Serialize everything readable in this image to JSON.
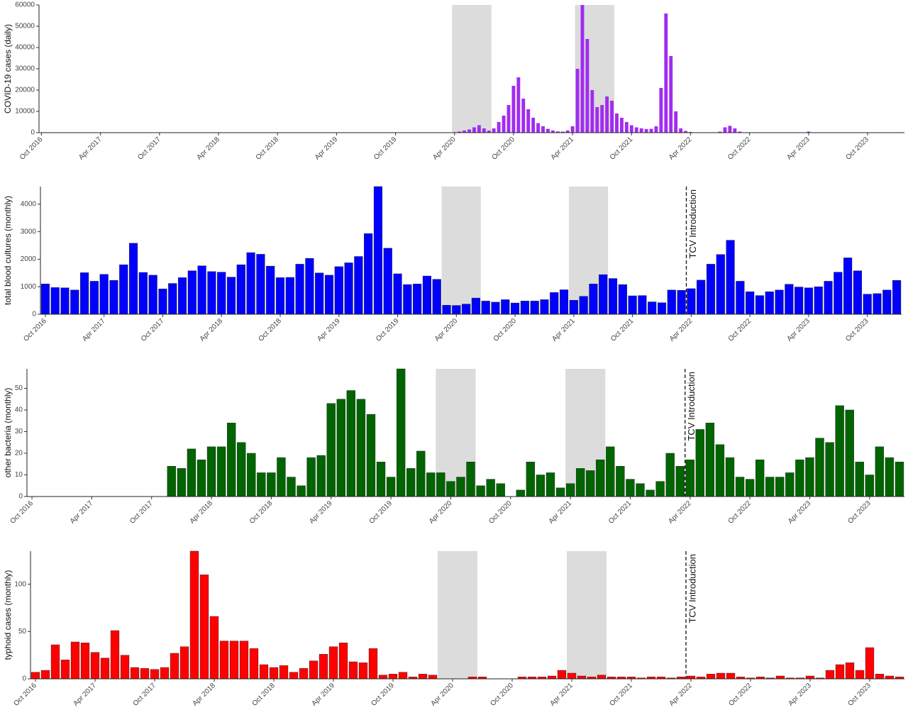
{
  "chart_data": [
    {
      "type": "bar",
      "y_label": "COVID-19 cases (daily)",
      "color": "#a12cf0",
      "categories": [
        "Oct 2016",
        null,
        null,
        null,
        null,
        null,
        null,
        null,
        null,
        null,
        null,
        null,
        "Apr 2017",
        null,
        null,
        null,
        null,
        null,
        null,
        null,
        null,
        null,
        null,
        null,
        "Oct 2017",
        null,
        null,
        null,
        null,
        null,
        null,
        null,
        null,
        null,
        null,
        null,
        "Apr 2018",
        null,
        null,
        null,
        null,
        null,
        null,
        null,
        null,
        null,
        null,
        null,
        "Oct 2018",
        null,
        null,
        null,
        null,
        null,
        null,
        null,
        null,
        null,
        null,
        null,
        "Apr 2019",
        null,
        null,
        null,
        null,
        null,
        null,
        null,
        null,
        null,
        null,
        null,
        "Oct 2019",
        null,
        null,
        null,
        null,
        null,
        null,
        null,
        null,
        null,
        null,
        null,
        "Apr 2020",
        null,
        null,
        null,
        null,
        null,
        null,
        null,
        null,
        null,
        null,
        null,
        "Oct 2020",
        null,
        null,
        null,
        null,
        null,
        null,
        null,
        null,
        null,
        null,
        null,
        "Apr 2021",
        null,
        null,
        null,
        null,
        null,
        null,
        null,
        null,
        null,
        null,
        null,
        "Oct 2021",
        null,
        null,
        null,
        null,
        null,
        null,
        null,
        null,
        null,
        null,
        null,
        "Apr 2022",
        null,
        null,
        null,
        null,
        null,
        null,
        null,
        null,
        null,
        null,
        null,
        "Oct 2022",
        null,
        null,
        null,
        null,
        null,
        null,
        null,
        null,
        null,
        null,
        null,
        "Apr 2023",
        null,
        null,
        null,
        null,
        null,
        null,
        null,
        null,
        null,
        null,
        null,
        "Oct 2023",
        null,
        null,
        null,
        null,
        null,
        null,
        null
      ],
      "values": [
        0,
        0,
        0,
        0,
        0,
        0,
        0,
        0,
        0,
        0,
        0,
        0,
        0,
        0,
        0,
        0,
        0,
        0,
        0,
        0,
        0,
        0,
        0,
        0,
        0,
        0,
        0,
        0,
        0,
        0,
        0,
        0,
        0,
        0,
        0,
        0,
        0,
        0,
        0,
        0,
        0,
        0,
        0,
        0,
        0,
        0,
        0,
        0,
        0,
        0,
        0,
        0,
        0,
        0,
        0,
        0,
        0,
        0,
        0,
        0,
        0,
        0,
        0,
        0,
        0,
        0,
        0,
        0,
        0,
        0,
        0,
        0,
        0,
        0,
        0,
        0,
        0,
        0,
        0,
        0,
        0,
        0,
        0,
        0,
        200,
        500,
        1000,
        1500,
        2500,
        3500,
        2000,
        1000,
        2000,
        5000,
        8000,
        13000,
        22000,
        26000,
        16000,
        11000,
        7000,
        4500,
        3000,
        1800,
        1000,
        600,
        500,
        1000,
        3000,
        30000,
        60000,
        44000,
        20000,
        12000,
        13000,
        17000,
        15000,
        9000,
        7000,
        5000,
        3500,
        2500,
        2000,
        1700,
        1800,
        3000,
        21000,
        56000,
        36000,
        10000,
        2000,
        800,
        300,
        100,
        0,
        0,
        0,
        0,
        500,
        2500,
        3200,
        2000,
        500,
        0,
        0,
        0,
        0,
        0,
        0,
        0,
        0,
        0,
        0,
        0,
        0,
        0,
        500,
        0,
        0,
        0,
        0,
        0,
        0,
        0,
        0,
        0,
        0,
        0,
        0,
        0,
        0,
        0,
        0,
        0,
        0,
        0
      ],
      "ylim": [
        0,
        60000
      ],
      "yticks": [
        0,
        10000,
        20000,
        30000,
        40000,
        50000,
        60000
      ],
      "shaded": [
        [
          84,
          91
        ],
        [
          109,
          116
        ]
      ]
    },
    {
      "type": "bar",
      "y_label": "total blood cultures (monthly)",
      "color": "#0000ff",
      "categories": [
        "Oct 2016",
        null,
        null,
        null,
        null,
        null,
        "Apr 2017",
        null,
        null,
        null,
        null,
        null,
        "Oct 2017",
        null,
        null,
        null,
        null,
        null,
        "Apr 2018",
        null,
        null,
        null,
        null,
        null,
        "Oct 2018",
        null,
        null,
        null,
        null,
        null,
        "Apr 2019",
        null,
        null,
        null,
        null,
        null,
        "Oct 2019",
        null,
        null,
        null,
        null,
        null,
        "Apr 2020",
        null,
        null,
        null,
        null,
        null,
        "Oct 2020",
        null,
        null,
        null,
        null,
        null,
        "Apr 2021",
        null,
        null,
        null,
        null,
        null,
        "Oct 2021",
        null,
        null,
        null,
        null,
        null,
        "Apr 2022",
        null,
        null,
        null,
        null,
        null,
        "Oct 2022",
        null,
        null,
        null,
        null,
        null,
        "Apr 2023",
        null,
        null,
        null,
        null,
        null,
        "Oct 2023",
        null,
        null,
        null
      ],
      "values": [
        1100,
        970,
        960,
        880,
        1510,
        1200,
        1450,
        1230,
        1800,
        2580,
        1520,
        1420,
        920,
        1120,
        1330,
        1580,
        1760,
        1550,
        1530,
        1350,
        1800,
        2240,
        2180,
        1750,
        1330,
        1340,
        1820,
        2030,
        1500,
        1420,
        1730,
        1870,
        2100,
        2930,
        4640,
        2400,
        1470,
        1080,
        1100,
        1390,
        1270,
        330,
        320,
        370,
        590,
        480,
        440,
        530,
        410,
        480,
        480,
        530,
        790,
        890,
        510,
        650,
        1100,
        1440,
        1300,
        1080,
        670,
        680,
        450,
        420,
        880,
        870,
        930,
        1240,
        1820,
        2170,
        2690,
        1200,
        820,
        680,
        820,
        880,
        1090,
        990,
        960,
        1000,
        1200,
        1530,
        2050,
        1580,
        730,
        750,
        880,
        1230
      ],
      "ylim": [
        0,
        4640
      ],
      "yticks": [
        0,
        1000,
        2000,
        3000,
        4000
      ],
      "shaded": [
        [
          41,
          44
        ],
        [
          54,
          57
        ]
      ],
      "annotation": {
        "text": "TCV Introduction",
        "at": "Apr 2022"
      }
    },
    {
      "type": "bar",
      "y_label": "other bacteria (monthly)",
      "color": "#006400",
      "categories": [
        "Oct 2016",
        null,
        null,
        null,
        null,
        null,
        "Apr 2017",
        null,
        null,
        null,
        null,
        null,
        "Oct 2017",
        null,
        null,
        null,
        null,
        null,
        "Apr 2018",
        null,
        null,
        null,
        null,
        null,
        "Oct 2018",
        null,
        null,
        null,
        null,
        null,
        "Apr 2019",
        null,
        null,
        null,
        null,
        null,
        "Oct 2019",
        null,
        null,
        null,
        null,
        null,
        "Apr 2020",
        null,
        null,
        null,
        null,
        null,
        "Oct 2020",
        null,
        null,
        null,
        null,
        null,
        "Apr 2021",
        null,
        null,
        null,
        null,
        null,
        "Oct 2021",
        null,
        null,
        null,
        null,
        null,
        "Apr 2022",
        null,
        null,
        null,
        null,
        null,
        "Oct 2022",
        null,
        null,
        null,
        null,
        null,
        "Apr 2023",
        null,
        null,
        null,
        null,
        null,
        "Oct 2023",
        null,
        null,
        null
      ],
      "values": [
        null,
        null,
        null,
        null,
        null,
        null,
        null,
        null,
        null,
        null,
        null,
        null,
        null,
        null,
        14,
        13,
        22,
        17,
        23,
        23,
        34,
        25,
        20,
        11,
        11,
        18,
        9,
        5,
        18,
        19,
        43,
        45,
        49,
        45,
        38,
        16,
        9,
        59,
        13,
        21,
        11,
        11,
        7,
        9,
        16,
        5,
        8,
        6,
        0,
        3,
        16,
        10,
        11,
        4,
        6,
        13,
        12,
        17,
        23,
        14,
        8,
        6,
        3,
        7,
        20,
        14,
        17,
        31,
        34,
        24,
        18,
        9,
        8,
        17,
        9,
        9,
        11,
        17,
        18,
        27,
        25,
        42,
        40,
        16,
        10,
        23,
        18,
        16
      ],
      "ylim": [
        0,
        59
      ],
      "yticks": [
        0,
        10,
        20,
        30,
        40,
        50
      ],
      "shaded": [
        [
          41,
          44
        ],
        [
          54,
          57
        ]
      ],
      "annotation": {
        "text": "TCV Introduction",
        "at": "Apr 2022"
      }
    },
    {
      "type": "bar",
      "y_label": "typhoid cases (monthly)",
      "color": "#ff0000",
      "categories": [
        "Oct 2016",
        null,
        null,
        null,
        null,
        null,
        "Apr 2017",
        null,
        null,
        null,
        null,
        null,
        "Oct 2017",
        null,
        null,
        null,
        null,
        null,
        "Apr 2018",
        null,
        null,
        null,
        null,
        null,
        "Oct 2018",
        null,
        null,
        null,
        null,
        null,
        "Apr 2019",
        null,
        null,
        null,
        null,
        null,
        "Oct 2019",
        null,
        null,
        null,
        null,
        null,
        "Apr 2020",
        null,
        null,
        null,
        null,
        null,
        "Oct 2020",
        null,
        null,
        null,
        null,
        null,
        "Apr 2021",
        null,
        null,
        null,
        null,
        null,
        "Oct 2021",
        null,
        null,
        null,
        null,
        null,
        "Apr 2022",
        null,
        null,
        null,
        null,
        null,
        "Oct 2022",
        null,
        null,
        null,
        null,
        null,
        "Apr 2023",
        null,
        null,
        null,
        null,
        null,
        "Oct 2023",
        null,
        null,
        null
      ],
      "values": [
        7,
        9,
        36,
        20,
        39,
        38,
        28,
        22,
        51,
        25,
        12,
        11,
        10,
        12,
        27,
        34,
        135,
        110,
        66,
        40,
        40,
        40,
        32,
        15,
        12,
        14,
        7,
        11,
        19,
        26,
        34,
        38,
        18,
        17,
        32,
        4,
        5,
        7,
        2,
        5,
        4,
        0,
        0,
        0,
        2,
        2,
        0,
        0,
        0,
        2,
        2,
        2,
        3,
        9,
        6,
        3,
        2,
        4,
        2,
        2,
        2,
        1,
        2,
        2,
        1,
        2,
        3,
        2,
        5,
        6,
        6,
        2,
        1,
        2,
        1,
        3,
        1,
        1,
        3,
        1,
        9,
        15,
        17,
        9,
        33,
        5,
        3,
        2
      ],
      "ylim": [
        0,
        135
      ],
      "yticks": [
        0,
        50,
        100
      ],
      "shaded": [
        [
          41,
          44
        ],
        [
          54,
          57
        ]
      ],
      "annotation": {
        "text": "TCV Introduction",
        "at": "Apr 2022"
      }
    }
  ]
}
